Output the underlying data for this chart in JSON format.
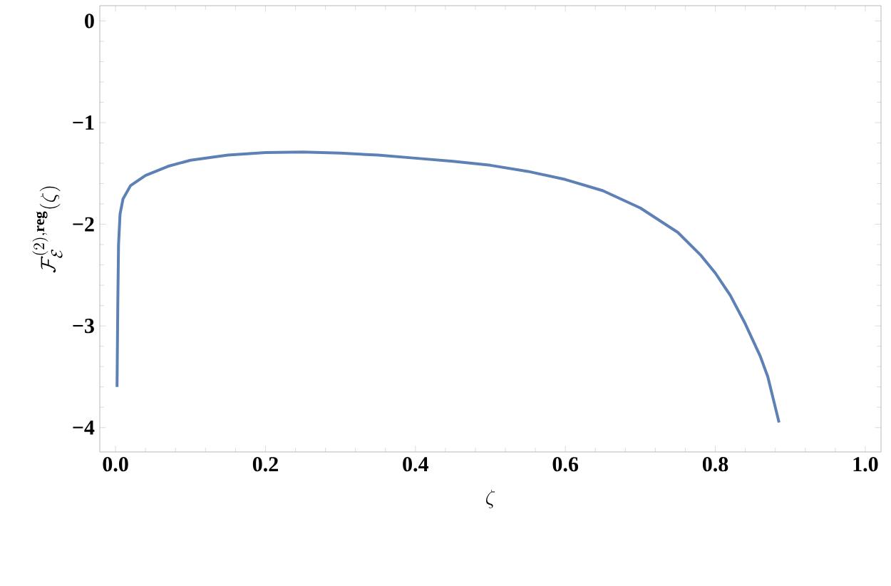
{
  "chart_data": {
    "type": "line",
    "xlabel": "\\zeta",
    "ylabel": "\\mathcal{F}^{(2),\\mathbf{reg}}_{\\mathcal{E}}(\\zeta)",
    "xlim": [
      -0.021,
      1.021
    ],
    "ylim": [
      -4.24,
      0.15
    ],
    "xticks": [
      {
        "value": 0,
        "label": "0.0"
      },
      {
        "value": 0.2,
        "label": "0.2"
      },
      {
        "value": 0.4,
        "label": "0.4"
      },
      {
        "value": 0.6,
        "label": "0.6"
      },
      {
        "value": 0.8,
        "label": "0.8"
      },
      {
        "value": 1,
        "label": "1.0"
      }
    ],
    "yticks": [
      {
        "value": 0,
        "label": "0"
      },
      {
        "value": -1,
        "label": "−1"
      },
      {
        "value": -2,
        "label": "−2"
      },
      {
        "value": -3,
        "label": "−3"
      },
      {
        "value": -4,
        "label": "−4"
      }
    ],
    "grid": false,
    "marker": "none",
    "line_style": "solid",
    "series": [
      {
        "color": "#5e81b5",
        "x": [
          0.002,
          0.003,
          0.004,
          0.006,
          0.01,
          0.02,
          0.04,
          0.07,
          0.1,
          0.15,
          0.2,
          0.25,
          0.3,
          0.35,
          0.4,
          0.45,
          0.5,
          0.55,
          0.6,
          0.65,
          0.7,
          0.75,
          0.78,
          0.8,
          0.82,
          0.84,
          0.86,
          0.87,
          0.885
        ],
        "values": [
          -3.6,
          -2.8,
          -2.2,
          -1.9,
          -1.75,
          -1.62,
          -1.52,
          -1.43,
          -1.37,
          -1.32,
          -1.295,
          -1.29,
          -1.3,
          -1.32,
          -1.35,
          -1.38,
          -1.42,
          -1.48,
          -1.56,
          -1.67,
          -1.84,
          -2.08,
          -2.3,
          -2.48,
          -2.7,
          -2.98,
          -3.3,
          -3.5,
          -3.95
        ]
      }
    ]
  }
}
